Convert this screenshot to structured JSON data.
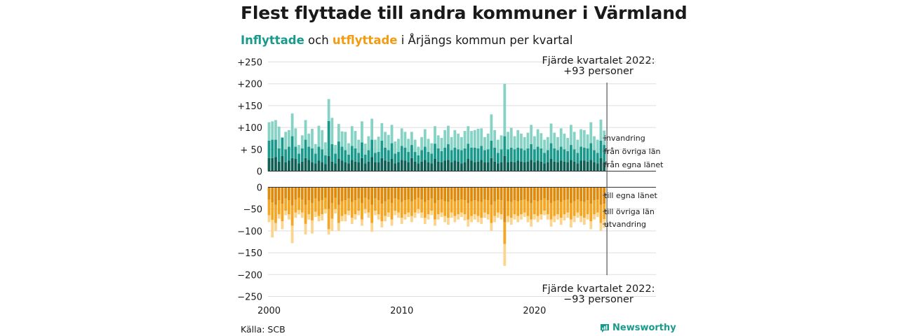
{
  "title": "Flest flyttade till andra kommuner i Värmland",
  "subtitle": {
    "in_word": "Inflyttade",
    "mid": " och ",
    "out_word": "utflyttade",
    "rest": " i Årjängs kommun per kvartal"
  },
  "source": "Källa: SCB",
  "brand": "Newsworthy",
  "colors": {
    "in_light": "#86d3c6",
    "in_mid": "#1a9a8c",
    "in_dark": "#0f5f55",
    "out_dark": "#e08a0b",
    "out_mid": "#f5a623",
    "out_light": "#fbd48d",
    "grid": "#dddddd",
    "text": "#1a1a1a"
  },
  "chart_data": {
    "type": "bar",
    "x_start": 2000,
    "x_end": 2022.75,
    "x_ticks": [
      "2000",
      "2010",
      "2020"
    ],
    "ylim": [
      -250,
      250
    ],
    "y_ticks": [
      "+250",
      "+200",
      "+150",
      "+100",
      "+ 50",
      "0",
      "0",
      "−50",
      "−100",
      "−150",
      "−200",
      "−250"
    ],
    "inflow_series": [
      {
        "name": "från egna länet",
        "values": [
          30,
          30,
          32,
          22,
          35,
          20,
          24,
          30,
          28,
          18,
          22,
          30,
          26,
          20,
          18,
          24,
          20,
          16,
          35,
          22,
          18,
          28,
          24,
          20,
          18,
          26,
          22,
          20,
          30,
          18,
          22,
          32,
          20,
          20,
          30,
          24,
          22,
          28,
          18,
          20,
          26,
          24,
          20,
          30,
          22,
          18,
          22,
          26,
          20,
          18,
          28,
          22,
          20,
          24,
          26,
          20,
          24,
          22,
          18,
          20,
          28,
          24,
          20,
          22,
          26,
          20,
          20,
          30,
          22,
          18,
          20,
          35,
          20,
          22,
          20,
          24,
          22,
          20,
          22,
          26,
          20,
          24,
          22,
          18,
          20,
          28,
          22,
          20,
          24,
          22,
          20,
          26,
          22,
          18,
          24,
          24,
          22,
          26,
          20,
          18,
          30,
          20
        ]
      },
      {
        "name": "från övriga län",
        "values": [
          40,
          42,
          40,
          30,
          42,
          30,
          32,
          50,
          28,
          22,
          30,
          42,
          30,
          32,
          22,
          32,
          30,
          20,
          80,
          40,
          22,
          40,
          32,
          28,
          20,
          32,
          30,
          22,
          36,
          20,
          26,
          40,
          22,
          24,
          40,
          30,
          26,
          36,
          22,
          24,
          32,
          30,
          24,
          30,
          22,
          18,
          26,
          30,
          24,
          22,
          35,
          30,
          26,
          30,
          36,
          28,
          30,
          28,
          30,
          32,
          35,
          30,
          34,
          30,
          32,
          28,
          30,
          40,
          32,
          24,
          30,
          45,
          30,
          32,
          30,
          30,
          30,
          28,
          30,
          36,
          30,
          32,
          30,
          24,
          28,
          36,
          30,
          28,
          32,
          28,
          26,
          34,
          28,
          24,
          32,
          30,
          30,
          38,
          28,
          24,
          40,
          40
        ]
      },
      {
        "name": "invandring",
        "values": [
          42,
          42,
          45,
          50,
          0,
          40,
          38,
          52,
          42,
          20,
          30,
          45,
          30,
          45,
          22,
          48,
          44,
          30,
          50,
          60,
          20,
          40,
          35,
          42,
          26,
          45,
          40,
          30,
          48,
          25,
          32,
          48,
          30,
          35,
          40,
          36,
          35,
          42,
          28,
          30,
          40,
          36,
          30,
          30,
          28,
          20,
          30,
          40,
          30,
          24,
          40,
          30,
          30,
          40,
          42,
          30,
          40,
          36,
          30,
          40,
          40,
          38,
          40,
          45,
          40,
          30,
          36,
          60,
          40,
          30,
          32,
          120,
          40,
          45,
          30,
          40,
          34,
          30,
          36,
          44,
          30,
          40,
          35,
          30,
          30,
          45,
          36,
          30,
          42,
          36,
          30,
          46,
          40,
          30,
          40,
          40,
          32,
          48,
          32,
          30,
          48,
          33
        ]
      }
    ],
    "outflow_series": [
      {
        "name": "till egna länet",
        "values": [
          -28,
          -35,
          -40,
          -30,
          -38,
          -26,
          -30,
          -42,
          -28,
          -24,
          -28,
          -40,
          -30,
          -36,
          -26,
          -32,
          -30,
          -24,
          -50,
          -36,
          -24,
          -40,
          -32,
          -30,
          -26,
          -34,
          -30,
          -26,
          -36,
          -24,
          -28,
          -40,
          -26,
          -30,
          -38,
          -32,
          -28,
          -36,
          -26,
          -28,
          -34,
          -30,
          -28,
          -32,
          -28,
          -24,
          -28,
          -34,
          -30,
          -26,
          -36,
          -30,
          -28,
          -32,
          -34,
          -28,
          -32,
          -30,
          -28,
          -30,
          -36,
          -32,
          -30,
          -32,
          -34,
          -28,
          -30,
          -40,
          -32,
          -28,
          -30,
          -80,
          -32,
          -34,
          -30,
          -32,
          -30,
          -28,
          -32,
          -36,
          -30,
          -32,
          -30,
          -26,
          -30,
          -36,
          -32,
          -30,
          -34,
          -30,
          -28,
          -36,
          -32,
          -28,
          -32,
          -34,
          -30,
          -38,
          -30,
          -28,
          -40,
          -38
        ]
      },
      {
        "name": "till övriga län",
        "values": [
          -36,
          -40,
          -42,
          -32,
          -40,
          -28,
          -32,
          -46,
          -30,
          -28,
          -30,
          -44,
          -32,
          -40,
          -30,
          -34,
          -32,
          -26,
          -46,
          -36,
          -26,
          -42,
          -34,
          -32,
          -28,
          -36,
          -32,
          -28,
          -38,
          -26,
          -30,
          -42,
          -28,
          -32,
          -40,
          -34,
          -30,
          -38,
          -28,
          -30,
          -36,
          -32,
          -30,
          -34,
          -30,
          -26,
          -30,
          -36,
          -32,
          -28,
          -38,
          -32,
          -30,
          -34,
          -36,
          -30,
          -34,
          -32,
          -30,
          -32,
          -38,
          -34,
          -32,
          -34,
          -36,
          -30,
          -32,
          -42,
          -34,
          -30,
          -32,
          -50,
          -34,
          -36,
          -32,
          -34,
          -32,
          -30,
          -34,
          -38,
          -32,
          -34,
          -32,
          -28,
          -32,
          -38,
          -34,
          -32,
          -36,
          -32,
          -30,
          -38,
          -34,
          -30,
          -34,
          -36,
          -32,
          -40,
          -32,
          -30,
          -42,
          -35
        ]
      },
      {
        "name": "utvandring",
        "values": [
          -16,
          -40,
          -18,
          -10,
          -18,
          -10,
          -12,
          -40,
          -12,
          -10,
          -12,
          -24,
          -12,
          -30,
          -12,
          -12,
          -14,
          -10,
          -12,
          -28,
          -10,
          -18,
          -12,
          -16,
          -10,
          -14,
          -12,
          -10,
          -14,
          -10,
          -12,
          -20,
          -10,
          -12,
          -14,
          -12,
          -10,
          -14,
          -10,
          -12,
          -14,
          -12,
          -10,
          -14,
          -12,
          -10,
          -12,
          -14,
          -12,
          -10,
          -14,
          -12,
          -10,
          -14,
          -16,
          -12,
          -14,
          -12,
          -10,
          -14,
          -16,
          -14,
          -12,
          -14,
          -14,
          -12,
          -12,
          -18,
          -14,
          -12,
          -12,
          -50,
          -14,
          -16,
          -12,
          -14,
          -12,
          -10,
          -14,
          -16,
          -12,
          -14,
          -12,
          -10,
          -12,
          -16,
          -14,
          -12,
          -16,
          -14,
          -12,
          -18,
          -14,
          -12,
          -14,
          -16,
          -12,
          -18,
          -12,
          -10,
          -18,
          -20
        ]
      }
    ],
    "annotation_top": [
      "Fjärde kvartalet 2022:",
      "+93 personer"
    ],
    "annotation_bottom": [
      "Fjärde kvartalet 2022:",
      "−93 personer"
    ],
    "legend_in": [
      "invandring",
      "från övriga län",
      "från egna länet"
    ],
    "legend_out": [
      "till egna länet",
      "till övriga län",
      "utvandring"
    ]
  }
}
